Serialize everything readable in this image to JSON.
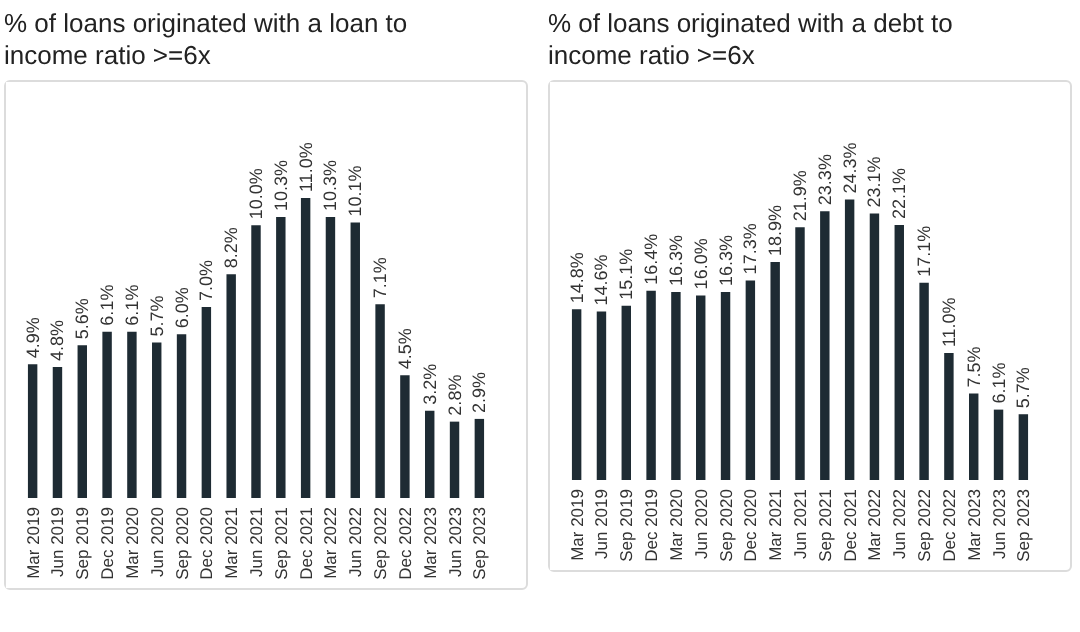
{
  "chart_data": [
    {
      "type": "bar",
      "title": "% of loans originated with a loan to income ratio >=6x",
      "categories": [
        "Mar 2019",
        "Jun 2019",
        "Sep 2019",
        "Dec 2019",
        "Mar 2020",
        "Jun 2020",
        "Sep 2020",
        "Dec 2020",
        "Mar 2021",
        "Jun 2021",
        "Sep 2021",
        "Dec 2021",
        "Mar 2022",
        "Jun 2022",
        "Sep 2022",
        "Dec 2022",
        "Mar 2023",
        "Jun 2023",
        "Sep 2023"
      ],
      "values": [
        4.9,
        4.8,
        5.6,
        6.1,
        6.1,
        5.7,
        6.0,
        7.0,
        8.2,
        10.0,
        10.3,
        11.0,
        10.3,
        10.1,
        7.1,
        4.5,
        3.2,
        2.8,
        2.9
      ],
      "value_labels": [
        "4.9%",
        "4.8%",
        "5.6%",
        "6.1%",
        "6.1%",
        "5.7%",
        "6.0%",
        "7.0%",
        "8.2%",
        "10.0%",
        "10.3%",
        "11.0%",
        "10.3%",
        "10.1%",
        "7.1%",
        "4.5%",
        "3.2%",
        "2.8%",
        "2.9%"
      ],
      "color": "#1e2b33",
      "tick_labels": "x",
      "grid": false
    },
    {
      "type": "bar",
      "title": "% of loans originated with a debt to income ratio >=6x",
      "categories": [
        "Mar 2019",
        "Jun 2019",
        "Sep 2019",
        "Dec 2019",
        "Mar 2020",
        "Jun 2020",
        "Sep 2020",
        "Dec 2020",
        "Mar 2021",
        "Jun 2021",
        "Sep 2021",
        "Dec 2021",
        "Mar 2022",
        "Jun 2022",
        "Sep 2022",
        "Dec 2022",
        "Mar 2023",
        "Jun 2023",
        "Sep 2023"
      ],
      "values": [
        14.8,
        14.6,
        15.1,
        16.4,
        16.3,
        16.0,
        16.3,
        17.3,
        18.9,
        21.9,
        23.3,
        24.3,
        23.1,
        22.1,
        17.1,
        11.0,
        7.5,
        6.1,
        5.7
      ],
      "value_labels": [
        "14.8%",
        "14.6%",
        "15.1%",
        "16.4%",
        "16.3%",
        "16.0%",
        "16.3%",
        "17.3%",
        "18.9%",
        "21.9%",
        "23.3%",
        "24.3%",
        "23.1%",
        "22.1%",
        "17.1%",
        "11.0%",
        "7.5%",
        "6.1%",
        "5.7%"
      ],
      "color": "#1e2b33",
      "tick_labels": "x",
      "grid": false
    }
  ]
}
